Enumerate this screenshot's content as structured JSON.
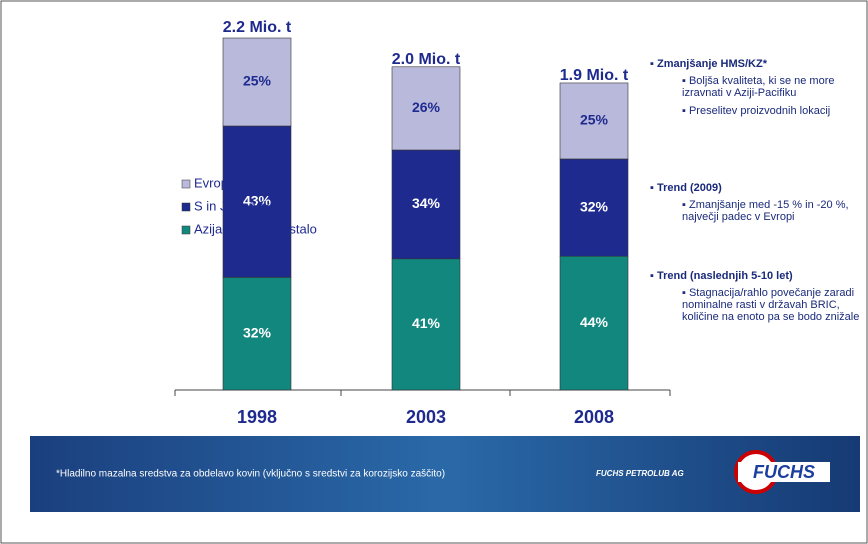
{
  "chart_data": {
    "type": "bar",
    "categories": [
      "1998",
      "2003",
      "2008"
    ],
    "series": [
      {
        "name": "Evropa",
        "color": "#b9b9dc",
        "values": [
          25,
          26,
          25
        ],
        "value_labels": [
          "25%",
          "26%",
          "25%"
        ]
      },
      {
        "name": "S in J Amerika",
        "color": "#1e2a8e",
        "values": [
          43,
          34,
          32
        ],
        "value_labels": [
          "43%",
          "34%",
          "32%"
        ]
      },
      {
        "name": "Azija-Pacifik in ostalo",
        "color": "#11877e",
        "values": [
          32,
          41,
          44
        ],
        "value_labels": [
          "32%",
          "41%",
          "44%"
        ]
      }
    ],
    "totals": [
      2.2,
      2.0,
      1.9
    ],
    "total_labels": [
      "2.2 Mio. t",
      "2.0 Mio. t",
      "1.9 Mio. t"
    ]
  },
  "notes": [
    {
      "heading": "Zmanjšanje HMS/KZ*",
      "items": [
        "Boljša kvaliteta, ki se ne more izravnati v Aziji-Pacifiku",
        "Preselitev proizvodnih lokacij"
      ]
    },
    {
      "heading": "Trend (2009)",
      "items": [
        "Zmanjšanje med -15 % in -20 %, največji padec v Evropi"
      ]
    },
    {
      "heading": "Trend (naslednjih 5-10 let)",
      "items": [
        "Stagnacija/rahlo povečanje zaradi nominalne rasti v državah BRIC, količine na enoto pa se bodo znižale"
      ]
    }
  ],
  "footer": {
    "footnote": "*Hladilno mazalna sredstva za obdelavo kovin (vključno s sredstvi za korozijsko zaščito)",
    "company": "FUCHS PETROLUB AG",
    "logo": "FUCHS"
  }
}
